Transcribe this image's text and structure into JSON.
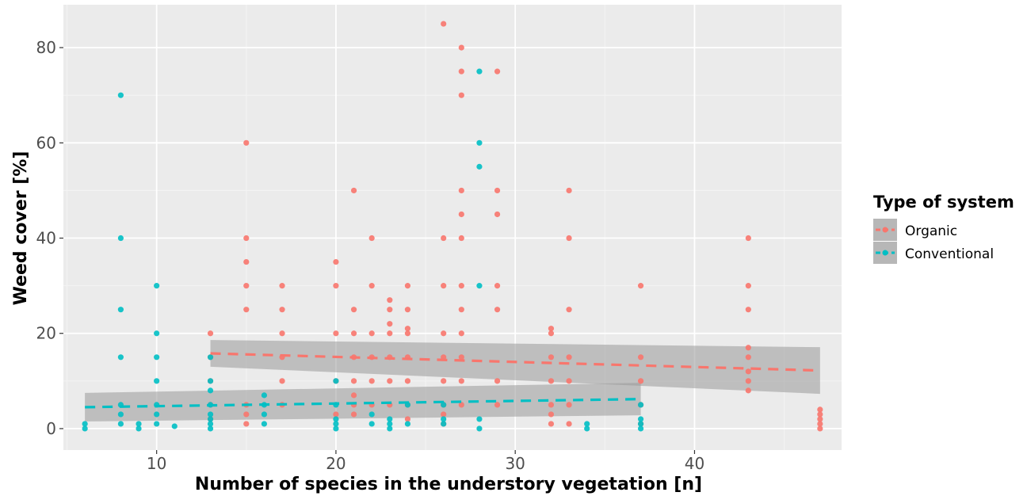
{
  "chart_data": {
    "type": "scatter",
    "xlabel": "Number of species in the understory vegetation [n]",
    "ylabel": "Weed cover [%]",
    "xlim": [
      4.8,
      48.2
    ],
    "ylim": [
      -4.5,
      89
    ],
    "x_ticks": [
      10,
      20,
      30,
      40
    ],
    "y_ticks": [
      0,
      20,
      40,
      60,
      80
    ],
    "grid": true,
    "legend": {
      "title": "Type of system",
      "position": "right",
      "entries": [
        "Organic",
        "Conventional"
      ]
    },
    "series": [
      {
        "name": "Organic",
        "color": "#f8766d",
        "points": [
          [
            13,
            20
          ],
          [
            13,
            15
          ],
          [
            13,
            10
          ],
          [
            13,
            5
          ],
          [
            13,
            2
          ],
          [
            15,
            60
          ],
          [
            15,
            40
          ],
          [
            15,
            35
          ],
          [
            15,
            30
          ],
          [
            15,
            25
          ],
          [
            15,
            5
          ],
          [
            15,
            3
          ],
          [
            15,
            1
          ],
          [
            17,
            30
          ],
          [
            17,
            25
          ],
          [
            17,
            20
          ],
          [
            17,
            15
          ],
          [
            17,
            10
          ],
          [
            17,
            5
          ],
          [
            20,
            35
          ],
          [
            20,
            30
          ],
          [
            20,
            20
          ],
          [
            20,
            10
          ],
          [
            20,
            3
          ],
          [
            21,
            50
          ],
          [
            21,
            25
          ],
          [
            21,
            20
          ],
          [
            21,
            15
          ],
          [
            21,
            10
          ],
          [
            21,
            7
          ],
          [
            21,
            5
          ],
          [
            21,
            3
          ],
          [
            22,
            40
          ],
          [
            22,
            30
          ],
          [
            22,
            20
          ],
          [
            22,
            15
          ],
          [
            22,
            10
          ],
          [
            22,
            5
          ],
          [
            23,
            27
          ],
          [
            23,
            25
          ],
          [
            23,
            22
          ],
          [
            23,
            20
          ],
          [
            23,
            15
          ],
          [
            23,
            10
          ],
          [
            23,
            5
          ],
          [
            24,
            30
          ],
          [
            24,
            25
          ],
          [
            24,
            21
          ],
          [
            24,
            20
          ],
          [
            24,
            15
          ],
          [
            24,
            10
          ],
          [
            24,
            5
          ],
          [
            24,
            2
          ],
          [
            26,
            85
          ],
          [
            26,
            40
          ],
          [
            26,
            30
          ],
          [
            26,
            20
          ],
          [
            26,
            15
          ],
          [
            26,
            10
          ],
          [
            26,
            5
          ],
          [
            26,
            3
          ],
          [
            26,
            1
          ],
          [
            27,
            80
          ],
          [
            27,
            75
          ],
          [
            27,
            70
          ],
          [
            27,
            50
          ],
          [
            27,
            45
          ],
          [
            27,
            40
          ],
          [
            27,
            30
          ],
          [
            27,
            25
          ],
          [
            27,
            20
          ],
          [
            27,
            15
          ],
          [
            27,
            10
          ],
          [
            27,
            5
          ],
          [
            29,
            75
          ],
          [
            29,
            50
          ],
          [
            29,
            45
          ],
          [
            29,
            30
          ],
          [
            29,
            25
          ],
          [
            29,
            10
          ],
          [
            29,
            5
          ],
          [
            32,
            21
          ],
          [
            32,
            20
          ],
          [
            32,
            15
          ],
          [
            32,
            10
          ],
          [
            32,
            5
          ],
          [
            32,
            3
          ],
          [
            32,
            1
          ],
          [
            33,
            50
          ],
          [
            33,
            40
          ],
          [
            33,
            25
          ],
          [
            33,
            15
          ],
          [
            33,
            10
          ],
          [
            33,
            5
          ],
          [
            33,
            1
          ],
          [
            37,
            30
          ],
          [
            37,
            15
          ],
          [
            37,
            10
          ],
          [
            37,
            5
          ],
          [
            37,
            1
          ],
          [
            43,
            40
          ],
          [
            43,
            30
          ],
          [
            43,
            25
          ],
          [
            43,
            17
          ],
          [
            43,
            15
          ],
          [
            43,
            12
          ],
          [
            43,
            10
          ],
          [
            43,
            8
          ],
          [
            47,
            4
          ],
          [
            47,
            3
          ],
          [
            47,
            2
          ],
          [
            47,
            1
          ],
          [
            47,
            0
          ]
        ]
      },
      {
        "name": "Conventional",
        "color": "#00bfc4",
        "points": [
          [
            6,
            1
          ],
          [
            6,
            0
          ],
          [
            8,
            70
          ],
          [
            8,
            40
          ],
          [
            8,
            25
          ],
          [
            8,
            15
          ],
          [
            8,
            5
          ],
          [
            8,
            3
          ],
          [
            8,
            1
          ],
          [
            9,
            1
          ],
          [
            9,
            0
          ],
          [
            10,
            30
          ],
          [
            10,
            20
          ],
          [
            10,
            15
          ],
          [
            10,
            10
          ],
          [
            10,
            5
          ],
          [
            10,
            3
          ],
          [
            10,
            1
          ],
          [
            11,
            0.5
          ],
          [
            13,
            15
          ],
          [
            13,
            10
          ],
          [
            13,
            8
          ],
          [
            13,
            5
          ],
          [
            13,
            3
          ],
          [
            13,
            2
          ],
          [
            13,
            1
          ],
          [
            13,
            0
          ],
          [
            16,
            7
          ],
          [
            16,
            5
          ],
          [
            16,
            3
          ],
          [
            16,
            1
          ],
          [
            20,
            10
          ],
          [
            20,
            5
          ],
          [
            20,
            2
          ],
          [
            20,
            1
          ],
          [
            20,
            0
          ],
          [
            22,
            3
          ],
          [
            22,
            1
          ],
          [
            23,
            2
          ],
          [
            23,
            1
          ],
          [
            23,
            0
          ],
          [
            24,
            5
          ],
          [
            24,
            1
          ],
          [
            26,
            5
          ],
          [
            26,
            2
          ],
          [
            26,
            1
          ],
          [
            28,
            75
          ],
          [
            28,
            60
          ],
          [
            28,
            55
          ],
          [
            28,
            30
          ],
          [
            28,
            2
          ],
          [
            28,
            0
          ],
          [
            34,
            1
          ],
          [
            34,
            0
          ],
          [
            37,
            5
          ],
          [
            37,
            2
          ],
          [
            37,
            1
          ],
          [
            37,
            0
          ]
        ]
      }
    ],
    "trend_lines": [
      {
        "name": "Organic",
        "x": [
          13,
          47
        ],
        "y": [
          15.8,
          12.2
        ],
        "ci_low": [
          13.0,
          7.3
        ],
        "ci_high": [
          18.6,
          17.1
        ]
      },
      {
        "name": "Conventional",
        "x": [
          6,
          37
        ],
        "y": [
          4.5,
          6.2
        ],
        "ci_low": [
          1.5,
          2.8
        ],
        "ci_high": [
          7.5,
          9.6
        ]
      }
    ]
  }
}
